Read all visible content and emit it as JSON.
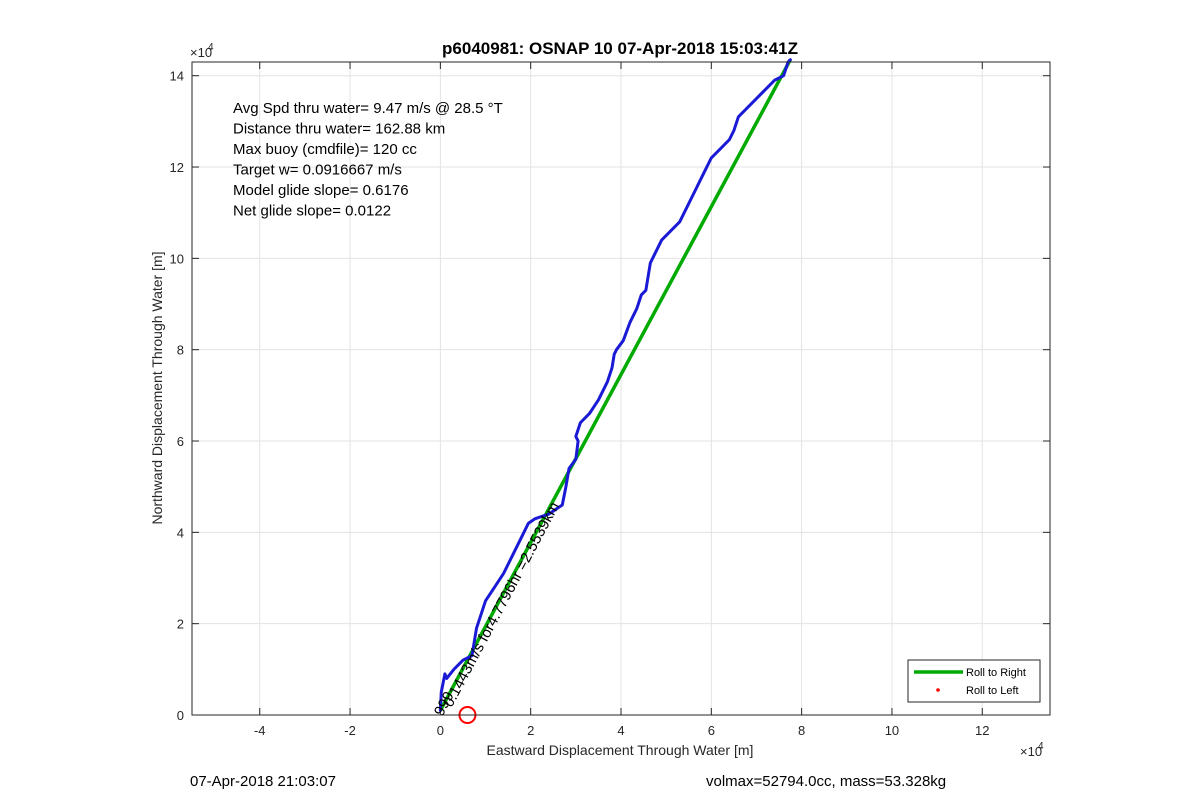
{
  "chart_data": {
    "type": "line",
    "title": "p6040981: OSNAP 10 07-Apr-2018 15:03:41Z",
    "xlabel": "Eastward Displacement Through Water [m]",
    "ylabel": "Northward Displacement Through Water [m]",
    "xlim": [
      -5.5,
      13.5
    ],
    "ylim": [
      0,
      14.3
    ],
    "x_ticks": [
      -4,
      -2,
      0,
      2,
      4,
      6,
      8,
      10,
      12
    ],
    "y_ticks": [
      0,
      2,
      4,
      6,
      8,
      10,
      12,
      14
    ],
    "x_exponent": "×10",
    "x_exponent_power": "4",
    "y_exponent": "×10",
    "y_exponent_power": "4",
    "grid": true,
    "legend_position": "bottom-right",
    "legend": [
      {
        "label": "Roll to Right",
        "style": "line",
        "color": "#00aa00"
      },
      {
        "label": "Roll to Left",
        "style": "dot",
        "color": "#ff0000"
      }
    ],
    "annotations": [
      "Avg Spd thru water=  9.47 m/s @  28.5 °T",
      "Distance thru water= 162.88 km",
      "Max buoy (cmdfile)= 120 cc",
      "Target w= 0.0916667 m/s",
      "Model glide slope= 0.6176",
      "Net glide slope= 0.0122"
    ],
    "rotated_label": "0.1443m/s for4.7796hr =2.5539km",
    "overlay_label": "999",
    "series": [
      {
        "name": "Roll to Right",
        "color": "#00aa00",
        "x": [
          0.0,
          7.75
        ],
        "y": [
          0.1,
          14.35
        ]
      },
      {
        "color": "#1a1ad6",
        "x": [
          0.0,
          0.02,
          0.1,
          0.14,
          0.3,
          0.5,
          0.7,
          0.75,
          0.8,
          0.9,
          1.0,
          1.2,
          1.4,
          1.5,
          1.6,
          1.8,
          1.95,
          2.1,
          2.4,
          2.7,
          2.78,
          2.85,
          3.0,
          3.05,
          3.0,
          3.1,
          3.3,
          3.5,
          3.7,
          3.8,
          3.85,
          3.9,
          4.05,
          4.2,
          4.35,
          4.45,
          4.55,
          4.6,
          4.65,
          4.8,
          4.9,
          5.1,
          5.3,
          5.5,
          5.65,
          5.75,
          5.85,
          6.0,
          6.2,
          6.4,
          6.5,
          6.55,
          6.6,
          6.8,
          7.0,
          7.2,
          7.4,
          7.6,
          7.65,
          7.7,
          7.75
        ],
        "y": [
          0.1,
          0.5,
          0.9,
          0.8,
          1.0,
          1.2,
          1.3,
          1.6,
          1.9,
          2.2,
          2.5,
          2.8,
          3.1,
          3.3,
          3.5,
          3.9,
          4.2,
          4.3,
          4.4,
          4.6,
          5.0,
          5.4,
          5.6,
          6.0,
          6.1,
          6.4,
          6.6,
          6.9,
          7.3,
          7.6,
          7.9,
          8.0,
          8.2,
          8.6,
          8.9,
          9.2,
          9.3,
          9.6,
          9.9,
          10.2,
          10.4,
          10.6,
          10.8,
          11.2,
          11.5,
          11.7,
          11.9,
          12.2,
          12.4,
          12.6,
          12.8,
          12.95,
          13.1,
          13.3,
          13.5,
          13.7,
          13.9,
          14.0,
          14.15,
          14.3,
          14.35
        ]
      }
    ],
    "marker": {
      "x": 0.6,
      "y": 0.0,
      "color": "#ff0000"
    }
  },
  "footer": {
    "left": "07-Apr-2018 21:03:07",
    "right": "volmax=52794.0cc, mass=53.328kg"
  }
}
